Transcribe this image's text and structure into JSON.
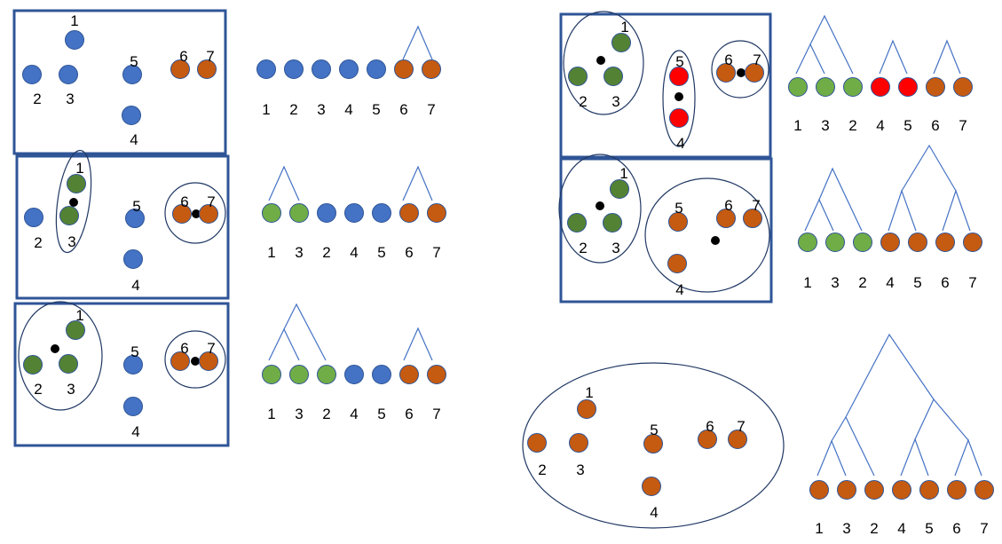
{
  "colors": {
    "blue": "#4472c4",
    "orange": "#c55a11",
    "green_dark": "#548235",
    "green_light": "#70ad47",
    "red": "#ff0000",
    "frame": "#2f5597",
    "outline": "#203864",
    "tree_line": "#4472c4",
    "centroid": "#000000"
  },
  "panels": [
    {
      "id": "step-1",
      "points": [
        {
          "label": "1",
          "color": "blue"
        },
        {
          "label": "2",
          "color": "blue"
        },
        {
          "label": "3",
          "color": "blue"
        },
        {
          "label": "5",
          "color": "blue"
        },
        {
          "label": "4",
          "color": "blue"
        },
        {
          "label": "6",
          "color": "orange"
        },
        {
          "label": "7",
          "color": "orange"
        }
      ],
      "sequence": [
        {
          "label": "1",
          "color": "blue"
        },
        {
          "label": "2",
          "color": "blue"
        },
        {
          "label": "3",
          "color": "blue"
        },
        {
          "label": "4",
          "color": "blue"
        },
        {
          "label": "5",
          "color": "blue"
        },
        {
          "label": "6",
          "color": "orange"
        },
        {
          "label": "7",
          "color": "orange"
        }
      ]
    },
    {
      "id": "step-2",
      "points": [
        {
          "label": "1",
          "color": "green_dark"
        },
        {
          "label": "2",
          "color": "blue"
        },
        {
          "label": "3",
          "color": "green_dark"
        },
        {
          "label": "5",
          "color": "blue"
        },
        {
          "label": "4",
          "color": "blue"
        },
        {
          "label": "6",
          "color": "orange"
        },
        {
          "label": "7",
          "color": "orange"
        }
      ],
      "sequence": [
        {
          "label": "1",
          "color": "green_light"
        },
        {
          "label": "3",
          "color": "green_light"
        },
        {
          "label": "2",
          "color": "blue"
        },
        {
          "label": "4",
          "color": "blue"
        },
        {
          "label": "5",
          "color": "blue"
        },
        {
          "label": "6",
          "color": "orange"
        },
        {
          "label": "7",
          "color": "orange"
        }
      ]
    },
    {
      "id": "step-3",
      "points": [
        {
          "label": "1",
          "color": "green_dark"
        },
        {
          "label": "2",
          "color": "green_dark"
        },
        {
          "label": "3",
          "color": "green_dark"
        },
        {
          "label": "5",
          "color": "blue"
        },
        {
          "label": "4",
          "color": "blue"
        },
        {
          "label": "6",
          "color": "orange"
        },
        {
          "label": "7",
          "color": "orange"
        }
      ],
      "sequence": [
        {
          "label": "1",
          "color": "green_light"
        },
        {
          "label": "3",
          "color": "green_light"
        },
        {
          "label": "2",
          "color": "green_light"
        },
        {
          "label": "4",
          "color": "blue"
        },
        {
          "label": "5",
          "color": "blue"
        },
        {
          "label": "6",
          "color": "orange"
        },
        {
          "label": "7",
          "color": "orange"
        }
      ]
    },
    {
      "id": "step-4",
      "points": [
        {
          "label": "1",
          "color": "green_dark"
        },
        {
          "label": "2",
          "color": "green_dark"
        },
        {
          "label": "3",
          "color": "green_dark"
        },
        {
          "label": "5",
          "color": "red"
        },
        {
          "label": "4",
          "color": "red"
        },
        {
          "label": "6",
          "color": "orange"
        },
        {
          "label": "7",
          "color": "orange"
        }
      ],
      "sequence": [
        {
          "label": "1",
          "color": "green_light"
        },
        {
          "label": "3",
          "color": "green_light"
        },
        {
          "label": "2",
          "color": "green_light"
        },
        {
          "label": "4",
          "color": "red"
        },
        {
          "label": "5",
          "color": "red"
        },
        {
          "label": "6",
          "color": "orange"
        },
        {
          "label": "7",
          "color": "orange"
        }
      ]
    },
    {
      "id": "step-5",
      "points": [
        {
          "label": "1",
          "color": "green_dark"
        },
        {
          "label": "2",
          "color": "green_dark"
        },
        {
          "label": "3",
          "color": "green_dark"
        },
        {
          "label": "5",
          "color": "orange"
        },
        {
          "label": "4",
          "color": "orange"
        },
        {
          "label": "6",
          "color": "orange"
        },
        {
          "label": "7",
          "color": "orange"
        }
      ],
      "sequence": [
        {
          "label": "1",
          "color": "green_light"
        },
        {
          "label": "3",
          "color": "green_light"
        },
        {
          "label": "2",
          "color": "green_light"
        },
        {
          "label": "4",
          "color": "orange"
        },
        {
          "label": "5",
          "color": "orange"
        },
        {
          "label": "6",
          "color": "orange"
        },
        {
          "label": "7",
          "color": "orange"
        }
      ]
    },
    {
      "id": "step-6",
      "points": [
        {
          "label": "1",
          "color": "orange"
        },
        {
          "label": "2",
          "color": "orange"
        },
        {
          "label": "3",
          "color": "orange"
        },
        {
          "label": "5",
          "color": "orange"
        },
        {
          "label": "4",
          "color": "orange"
        },
        {
          "label": "6",
          "color": "orange"
        },
        {
          "label": "7",
          "color": "orange"
        }
      ],
      "sequence": [
        {
          "label": "1",
          "color": "orange"
        },
        {
          "label": "3",
          "color": "orange"
        },
        {
          "label": "2",
          "color": "orange"
        },
        {
          "label": "4",
          "color": "orange"
        },
        {
          "label": "5",
          "color": "orange"
        },
        {
          "label": "6",
          "color": "orange"
        },
        {
          "label": "7",
          "color": "orange"
        }
      ]
    }
  ]
}
